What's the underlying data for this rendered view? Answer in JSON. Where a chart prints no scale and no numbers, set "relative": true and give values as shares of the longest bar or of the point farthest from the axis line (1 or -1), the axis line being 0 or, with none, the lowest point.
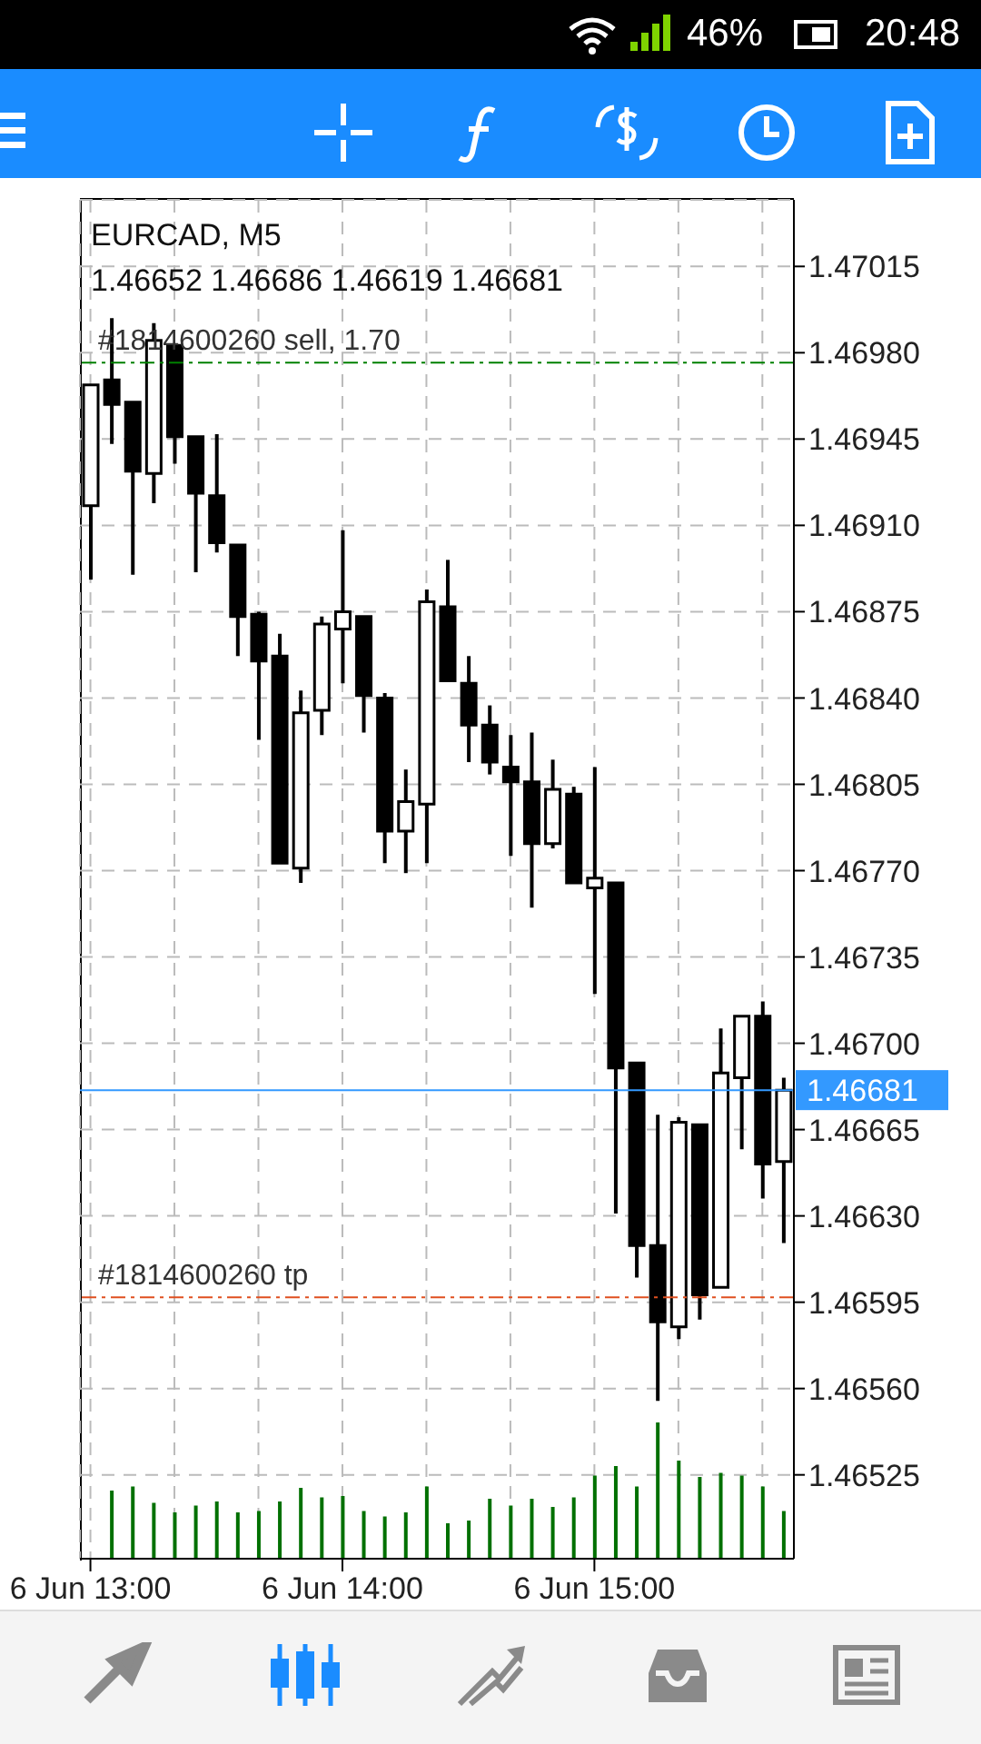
{
  "chart_data": [
    {
      "type": "candlestick",
      "title": "EURCAD, M5",
      "subtitle": "1.46652 1.46686 1.46619 1.46681",
      "annotations": [
        "46%",
        "20:48"
      ],
      "categories": [
        "6 Jun 13:00",
        null,
        null,
        null,
        null,
        null,
        null,
        null,
        null,
        null,
        null,
        null,
        "6 Jun 14:00",
        null,
        null,
        null,
        null,
        null,
        null,
        null,
        null,
        null,
        null,
        null,
        "6 Jun 15:00",
        null,
        null,
        null,
        null,
        null,
        null,
        null,
        null,
        null
      ],
      "ohlc": [
        [
          1.46918,
          1.46967,
          1.46888,
          1.46967
        ],
        [
          1.46969,
          1.46994,
          1.46943,
          1.46959
        ],
        [
          1.4696,
          1.4696,
          1.4689,
          1.46932
        ],
        [
          1.46931,
          1.46992,
          1.46919,
          1.46985
        ],
        [
          1.46983,
          1.46983,
          1.46935,
          1.46946
        ],
        [
          1.46946,
          1.46946,
          1.46891,
          1.46923
        ],
        [
          1.46922,
          1.46947,
          1.46899,
          1.46903
        ],
        [
          1.46902,
          1.46902,
          1.46857,
          1.46873
        ],
        [
          1.46874,
          1.46875,
          1.46823,
          1.46855
        ],
        [
          1.46857,
          1.46866,
          1.46773,
          1.46773
        ],
        [
          1.46771,
          1.46843,
          1.46765,
          1.46834
        ],
        [
          1.46835,
          1.46873,
          1.46825,
          1.4687
        ],
        [
          1.46868,
          1.46908,
          1.46846,
          1.46875
        ],
        [
          1.46873,
          1.46873,
          1.46826,
          1.46841
        ],
        [
          1.4684,
          1.46842,
          1.46773,
          1.46786
        ],
        [
          1.46786,
          1.46811,
          1.46769,
          1.46798
        ],
        [
          1.46797,
          1.46884,
          1.46773,
          1.46879
        ],
        [
          1.46877,
          1.46896,
          1.46847,
          1.46847
        ],
        [
          1.46846,
          1.46857,
          1.46814,
          1.46829
        ],
        [
          1.46829,
          1.46837,
          1.46809,
          1.46814
        ],
        [
          1.46812,
          1.46825,
          1.46776,
          1.46806
        ],
        [
          1.46806,
          1.46826,
          1.46755,
          1.46781
        ],
        [
          1.46781,
          1.46815,
          1.46779,
          1.46803
        ],
        [
          1.46801,
          1.46804,
          1.46765,
          1.46765
        ],
        [
          1.46763,
          1.46812,
          1.4672,
          1.46767
        ],
        [
          1.46765,
          1.46765,
          1.46631,
          1.4669
        ],
        [
          1.46692,
          1.46692,
          1.46605,
          1.46618
        ],
        [
          1.46618,
          1.46671,
          1.46555,
          1.46587
        ],
        [
          1.46585,
          1.4667,
          1.4658,
          1.46668
        ],
        [
          1.46667,
          1.46667,
          1.46588,
          1.46598
        ],
        [
          1.46601,
          1.46706,
          1.46601,
          1.46688
        ],
        [
          1.46686,
          1.46711,
          1.46657,
          1.46711
        ],
        [
          1.46711,
          1.46717,
          1.46637,
          1.46651
        ],
        [
          1.46652,
          1.46686,
          1.46619,
          1.46681
        ]
      ],
      "ylim": [
        1.46491,
        1.47042
      ],
      "yticks": [
        1.46525,
        {
          "value": 1.4656,
          "label": "1.46560"
        },
        1.46595,
        {
          "value": 1.4663,
          "label": "1.46630"
        },
        1.46665,
        {
          "value": 1.467,
          "label": "1.46700"
        },
        1.46735,
        {
          "value": 1.4677,
          "label": "1.46770"
        },
        1.46805,
        {
          "value": 1.4684,
          "label": "1.46840"
        },
        1.46875,
        {
          "value": 1.4691,
          "label": "1.46910"
        },
        1.46945,
        {
          "value": 1.4698,
          "label": "1.46980"
        },
        1.47015
      ],
      "grid": true,
      "ref_lines": [
        {
          "axis": "y",
          "value": 1.46976,
          "label": "#1814600260 sell, 1.70",
          "color": "#008000",
          "line_style": "dashed"
        },
        {
          "axis": "y",
          "value": 1.46597,
          "label": "#1814600260 tp",
          "color": "#e05020",
          "line_style": "dashed"
        },
        {
          "axis": "y",
          "value": 1.46681,
          "label": "1.46681",
          "color": "#3399ff"
        }
      ]
    },
    {
      "type": "bar",
      "relative": true,
      "color": "#007000",
      "categories": [
        null,
        null,
        null,
        null,
        null,
        null,
        null,
        null,
        null,
        null,
        null,
        null,
        null,
        null,
        null,
        null,
        null,
        null,
        null,
        null,
        null,
        null,
        null,
        null,
        null,
        null,
        null,
        null,
        null,
        null,
        null,
        null,
        null,
        null
      ],
      "values": [
        null,
        0.5,
        0.53,
        0.41,
        0.34,
        0.39,
        0.42,
        0.34,
        0.35,
        0.42,
        0.52,
        0.45,
        0.46,
        0.35,
        0.31,
        0.34,
        0.53,
        0.26,
        0.28,
        0.44,
        0.39,
        0.44,
        0.38,
        0.45,
        0.61,
        0.68,
        0.53,
        1,
        0.72,
        0.6,
        0.63,
        0.61,
        0.53,
        0.35
      ]
    }
  ]
}
